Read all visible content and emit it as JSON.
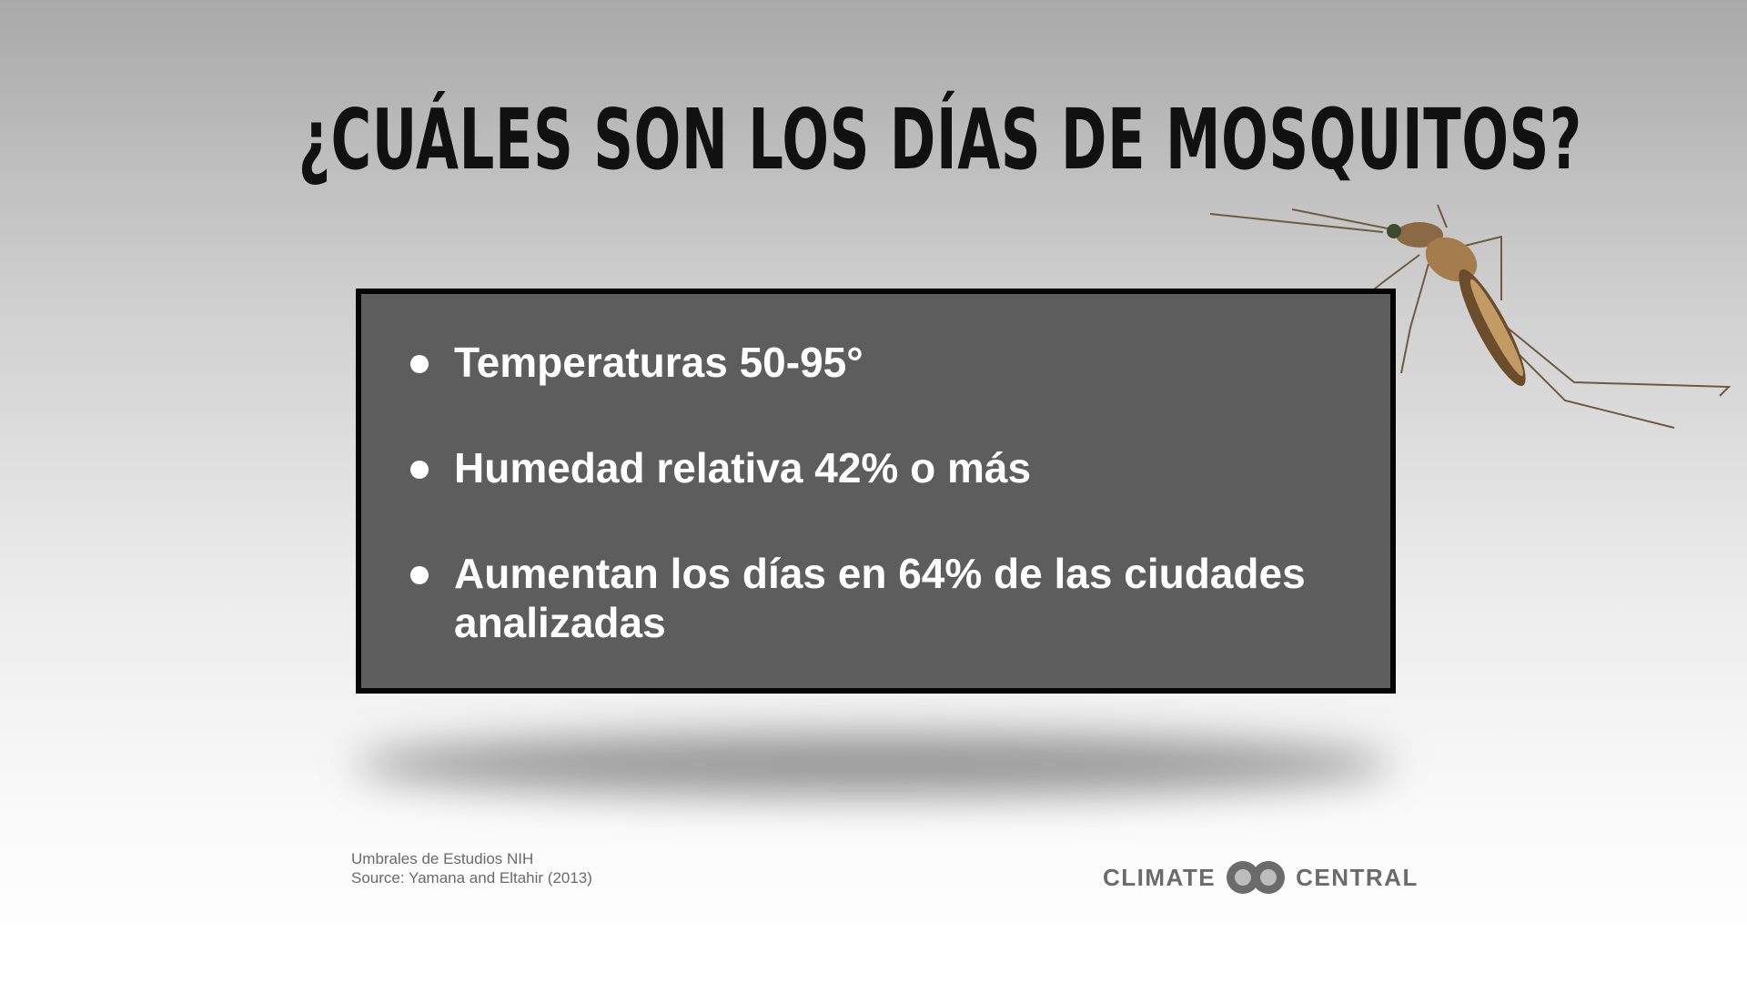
{
  "title": "¿CUÁLES SON LOS DÍAS DE MOSQUITOS?",
  "bullets": [
    "Temperaturas 50-95°",
    "Humedad relativa 42% o más",
    "Aumentan los días en 64% de las ciudades analizadas"
  ],
  "footnotes": [
    "Umbrales de Estudios NIH",
    "Source: Yamana and Eltahir (2013)"
  ],
  "logo": {
    "left": "CLIMATE",
    "right": "CENTRAL"
  }
}
